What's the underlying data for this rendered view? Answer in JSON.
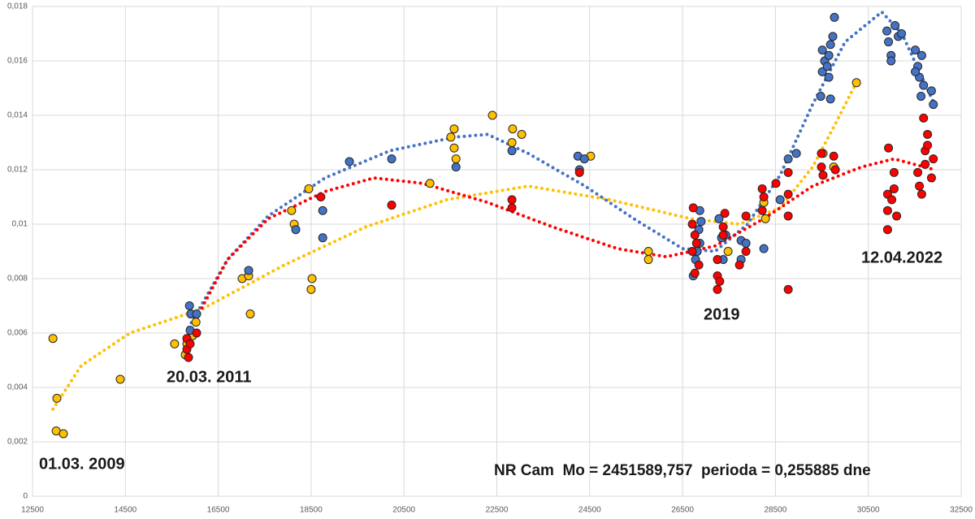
{
  "chart_data": {
    "type": "scatter",
    "xlim": [
      12500,
      32500
    ],
    "xticks": [
      12500,
      14500,
      16500,
      18500,
      20500,
      22500,
      24500,
      26500,
      28500,
      30500,
      32500
    ],
    "ylim": [
      0,
      0.018
    ],
    "yticks": [
      0,
      {
        "value": 0.002,
        "label": "0,002"
      },
      {
        "value": 0.004,
        "label": "0,004"
      },
      {
        "value": 0.006,
        "label": "0,006"
      },
      {
        "value": 0.008,
        "label": "0,008"
      },
      {
        "value": 0.01,
        "label": "0,01"
      },
      {
        "value": 0.012,
        "label": "0,012"
      },
      {
        "value": 0.014,
        "label": "0,014"
      },
      {
        "value": 0.016,
        "label": "0,016"
      },
      {
        "value": 0.018,
        "label": "0,018"
      }
    ],
    "grid": true,
    "annotations": [
      "01.03. 2009",
      "20.03. 2011",
      "2019",
      "12.04.2022",
      "NR Cam  Mo = 2451589,757  perioda = 0,255885 dne"
    ],
    "series": [
      {
        "type": "line",
        "style": "dotted",
        "color": "#ffc000",
        "x": [
          12940,
          13550,
          14600,
          16175,
          17925,
          19675,
          21425,
          23175,
          24925,
          26675,
          27725,
          28600,
          29300,
          29825,
          30210
        ],
        "values": [
          0.0032,
          0.0048,
          0.006,
          0.0069,
          0.0085,
          0.0099,
          0.0109,
          0.0114,
          0.0109,
          0.0102,
          0.01,
          0.0106,
          0.0121,
          0.0138,
          0.0151
        ]
      },
      {
        "type": "line",
        "style": "dotted",
        "color": "#4472c4",
        "x": [
          15860,
          16700,
          17575,
          18800,
          20200,
          21600,
          22300,
          23175,
          24400,
          25450,
          26500,
          27200,
          27900,
          28600,
          29300,
          30000,
          30790,
          31225,
          31575,
          31925
        ],
        "values": [
          0.0062,
          0.0087,
          0.0103,
          0.0117,
          0.0127,
          0.0132,
          0.0133,
          0.0126,
          0.0114,
          0.0102,
          0.0091,
          0.009,
          0.01,
          0.0118,
          0.0144,
          0.0167,
          0.0178,
          0.017,
          0.0157,
          0.0144
        ]
      },
      {
        "type": "line",
        "style": "dotted",
        "color": "#ff0000",
        "x": [
          15860,
          16700,
          17575,
          18800,
          19850,
          20900,
          22300,
          23700,
          25100,
          26150,
          27200,
          28250,
          29300,
          30350,
          31055,
          31925
        ],
        "values": [
          0.006,
          0.0087,
          0.0102,
          0.0112,
          0.0117,
          0.0115,
          0.0108,
          0.0099,
          0.0091,
          0.0088,
          0.0092,
          0.0102,
          0.0114,
          0.0121,
          0.0124,
          0.012
        ]
      },
      {
        "type": "scatter",
        "color": "#ffc000",
        "x": [
          12940,
          13025,
          13010,
          13165,
          14390,
          15560,
          15790,
          15825,
          15950,
          16020,
          17015,
          17155,
          17190,
          18080,
          18135,
          18450,
          18520,
          18500,
          21060,
          21510,
          21580,
          21580,
          21620,
          22405,
          22840,
          23035,
          22825,
          24520,
          25765,
          25765,
          27480,
          28250,
          28285,
          29525,
          29755,
          30245
        ],
        "values": [
          0.0058,
          0.0036,
          0.0024,
          0.0023,
          0.0043,
          0.0056,
          0.0052,
          0.0056,
          0.0059,
          0.0064,
          0.008,
          0.0081,
          0.0067,
          0.0105,
          0.01,
          0.0113,
          0.008,
          0.0076,
          0.0115,
          0.0132,
          0.0135,
          0.0128,
          0.0124,
          0.014,
          0.0135,
          0.0133,
          0.013,
          0.0125,
          0.009,
          0.0087,
          0.009,
          0.0108,
          0.0102,
          0.0126,
          0.0121,
          0.0152
        ]
      },
      {
        "type": "scatter",
        "color": "#4472c4",
        "x": [
          15880,
          15910,
          16035,
          15895,
          17155,
          18170,
          18750,
          18750,
          19325,
          20235,
          21620,
          22825,
          24245,
          24385,
          24280,
          26730,
          26780,
          26815,
          26870,
          26850,
          26900,
          26870,
          27285,
          27340,
          27375,
          27430,
          27760,
          27760,
          27865,
          28250,
          28600,
          28775,
          28950,
          29475,
          29510,
          29510,
          29560,
          29615,
          29650,
          29685,
          29735,
          29770,
          29685,
          29650,
          30900,
          30935,
          30990,
          31075,
          31145,
          31215,
          30990,
          31512,
          31565,
          31600,
          31650,
          31690,
          31635,
          31860,
          31900,
          31512
        ],
        "values": [
          0.007,
          0.0067,
          0.0067,
          0.0061,
          0.0083,
          0.0098,
          0.0105,
          0.0095,
          0.0123,
          0.0124,
          0.0121,
          0.0127,
          0.0125,
          0.0124,
          0.012,
          0.0081,
          0.0087,
          0.009,
          0.0093,
          0.0098,
          0.0101,
          0.0105,
          0.0102,
          0.0095,
          0.0087,
          0.0096,
          0.0094,
          0.0087,
          0.0093,
          0.0091,
          0.0109,
          0.0124,
          0.0126,
          0.0147,
          0.0156,
          0.0164,
          0.016,
          0.0158,
          0.0162,
          0.0166,
          0.0169,
          0.0176,
          0.0146,
          0.0154,
          0.0171,
          0.0167,
          0.0162,
          0.0173,
          0.0169,
          0.017,
          0.016,
          0.0164,
          0.0158,
          0.0154,
          0.0162,
          0.0151,
          0.0147,
          0.0149,
          0.0144,
          0.0156
        ]
      },
      {
        "type": "scatter",
        "color": "#ff0000",
        "x": [
          15825,
          15825,
          15860,
          15895,
          16035,
          18710,
          20235,
          22825,
          22825,
          24280,
          26730,
          26710,
          26765,
          26800,
          26710,
          26850,
          26765,
          27250,
          27250,
          27250,
          27300,
          27375,
          27410,
          27375,
          27725,
          27865,
          27865,
          28215,
          28250,
          28215,
          28510,
          28775,
          28775,
          28775,
          28775,
          29490,
          29490,
          29525,
          29755,
          29790,
          30935,
          30915,
          30915,
          30915,
          31005,
          31055,
          31055,
          31110,
          31565,
          31600,
          31650,
          31690,
          31725,
          31775,
          31725,
          31775,
          31900,
          31860
        ],
        "values": [
          0.0058,
          0.0054,
          0.0051,
          0.0056,
          0.006,
          0.011,
          0.0107,
          0.0109,
          0.0106,
          0.0119,
          0.0106,
          0.01,
          0.0096,
          0.0093,
          0.009,
          0.0085,
          0.0082,
          0.0087,
          0.0081,
          0.0076,
          0.0079,
          0.0099,
          0.0104,
          0.0096,
          0.0085,
          0.0103,
          0.009,
          0.0113,
          0.011,
          0.0105,
          0.0115,
          0.0119,
          0.0111,
          0.0103,
          0.0076,
          0.0126,
          0.0121,
          0.0118,
          0.0125,
          0.012,
          0.0128,
          0.0111,
          0.0105,
          0.0098,
          0.0109,
          0.0119,
          0.0113,
          0.0103,
          0.0119,
          0.0114,
          0.0111,
          0.0139,
          0.0127,
          0.0133,
          0.0122,
          0.0129,
          0.0124,
          0.0117
        ]
      }
    ]
  }
}
